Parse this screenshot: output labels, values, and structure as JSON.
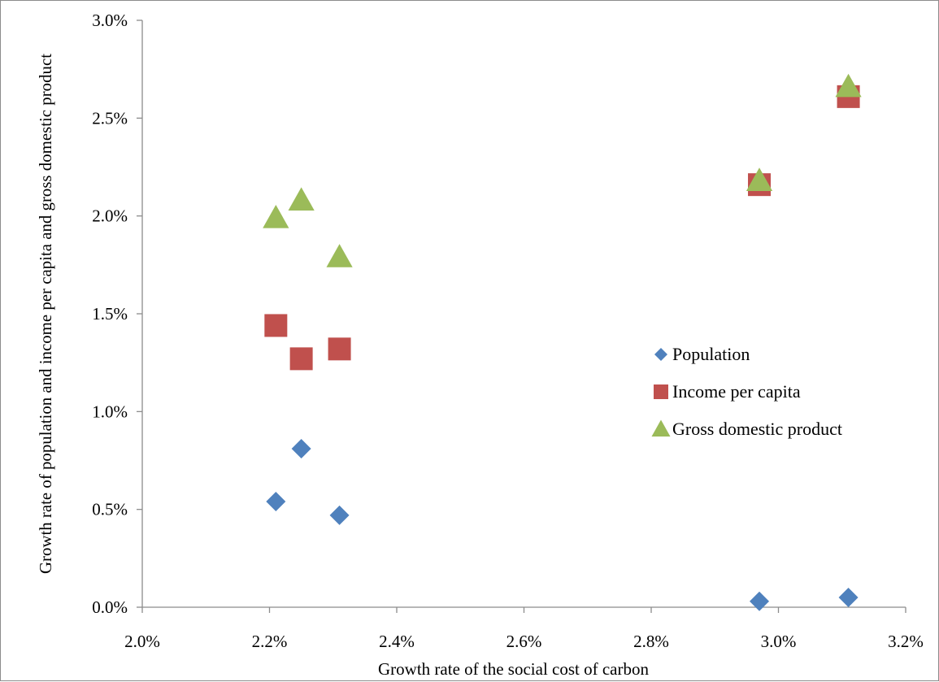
{
  "chart_data": {
    "type": "scatter",
    "title": "",
    "xlabel": "Growth rate of the social cost of carbon",
    "ylabel": "Growth rate of population and income per capita and gross domestic product",
    "xlim": [
      0.02,
      0.032
    ],
    "ylim": [
      0.0,
      0.03
    ],
    "x_ticks": [
      0.02,
      0.022,
      0.024,
      0.026,
      0.028,
      0.03,
      0.032
    ],
    "x_tick_labels": [
      "2.0%",
      "2.2%",
      "2.4%",
      "2.6%",
      "2.8%",
      "3.0%",
      "3.2%"
    ],
    "y_ticks": [
      0.0,
      0.005,
      0.01,
      0.015,
      0.02,
      0.025,
      0.03
    ],
    "y_tick_labels": [
      "0.0%",
      "0.5%",
      "1.0%",
      "1.5%",
      "2.0%",
      "2.5%",
      "3.0%"
    ],
    "grid": false,
    "legend_position": "right-center",
    "series": [
      {
        "name": "Population",
        "marker": "diamond",
        "color": "#4f81bd",
        "x": [
          0.0221,
          0.0225,
          0.0231,
          0.0297,
          0.0311
        ],
        "y": [
          0.0054,
          0.0081,
          0.0047,
          0.0003,
          0.0005
        ]
      },
      {
        "name": "Income per capita",
        "marker": "square",
        "color": "#c0504d",
        "x": [
          0.0221,
          0.0225,
          0.0231,
          0.0297,
          0.0311
        ],
        "y": [
          0.0144,
          0.0127,
          0.0132,
          0.0216,
          0.0261
        ]
      },
      {
        "name": "Gross domestic product",
        "marker": "triangle",
        "color": "#9bbb59",
        "x": [
          0.0221,
          0.0225,
          0.0231,
          0.0297,
          0.0311
        ],
        "y": [
          0.0199,
          0.0208,
          0.0179,
          0.0218,
          0.0266
        ]
      }
    ]
  }
}
